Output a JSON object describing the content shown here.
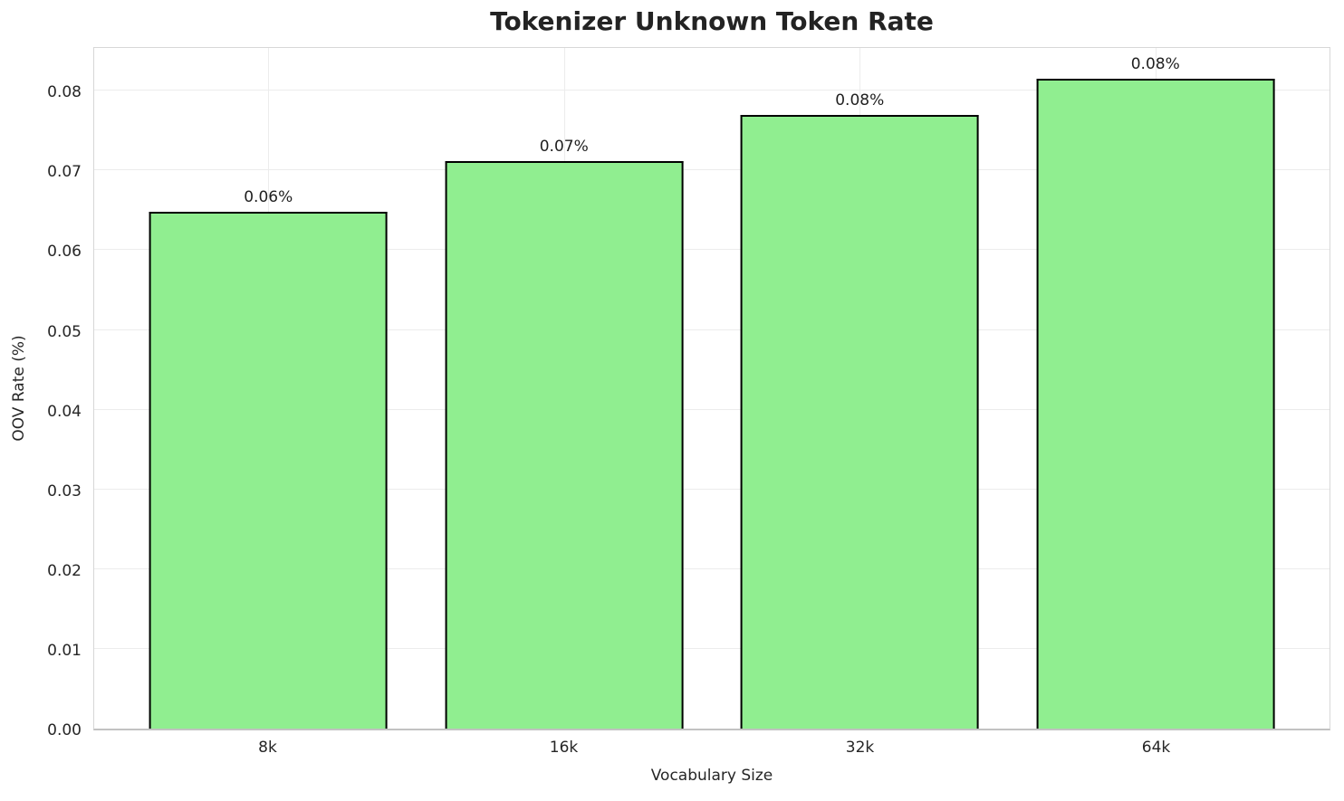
{
  "chart_data": {
    "type": "bar",
    "title": "Tokenizer Unknown Token Rate",
    "xlabel": "Vocabulary Size",
    "ylabel": "OOV Rate (%)",
    "categories": [
      "8k",
      "16k",
      "32k",
      "64k"
    ],
    "values": [
      0.0648,
      0.0712,
      0.077,
      0.0815
    ],
    "bar_labels": [
      "0.06%",
      "0.07%",
      "0.08%",
      "0.08%"
    ],
    "y_ticks": [
      "0.00",
      "0.01",
      "0.02",
      "0.03",
      "0.04",
      "0.05",
      "0.06",
      "0.07",
      "0.08"
    ],
    "y_tick_values": [
      0.0,
      0.01,
      0.02,
      0.03,
      0.04,
      0.05,
      0.06,
      0.07,
      0.08
    ],
    "ylim": [
      0.0,
      0.0857
    ],
    "grid": true,
    "legend": null,
    "bar_color": "#90EE90",
    "bar_edge_color": "#000000"
  }
}
